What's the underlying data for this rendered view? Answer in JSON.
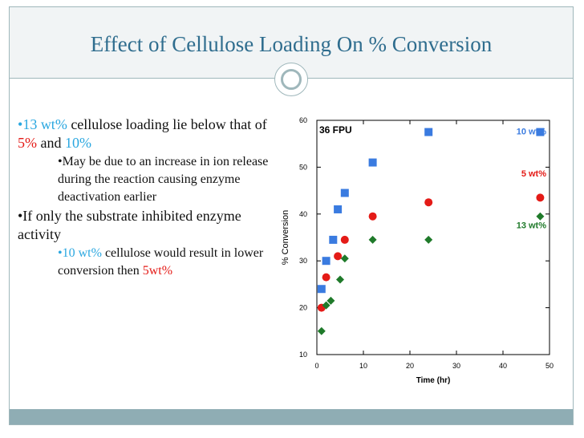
{
  "slide": {
    "title": "Effect of Cellulose Loading On % Conversion"
  },
  "bullets": {
    "b1_bullet": "•",
    "b1_wt": "13 wt%",
    "b1_text1": " cellulose loading lie below that of ",
    "b1_5": "5%",
    "b1_and": " and ",
    "b1_10": "10%",
    "s1": "•May be due to an increase in ion release during the reaction causing enzyme deactivation earlier",
    "b2": "•If only the substrate inhibited enzyme  activity",
    "s2_bullet": "•",
    "s2_10": "10 wt%",
    "s2_text": " cellulose would result in lower conversion then ",
    "s2_5": "5wt%"
  },
  "colors": {
    "title": "#2f6d8e",
    "blue": "#2aa7e0",
    "red": "#e41b17",
    "series_10": "#3a7be0",
    "series_5": "#e41b17",
    "series_13": "#1f7a2a",
    "footer": "#8fadb4"
  },
  "chart_data": {
    "type": "scatter",
    "title": "",
    "annotation": "36 FPU",
    "xlabel": "Time (hr)",
    "ylabel": "% Conversion",
    "xlim": [
      0,
      50
    ],
    "ylim": [
      10,
      60
    ],
    "xticks": [
      0,
      10,
      20,
      30,
      40,
      50
    ],
    "yticks": [
      10,
      20,
      30,
      40,
      50,
      60
    ],
    "legend_placement": "right (inline labels)",
    "series": [
      {
        "name": "10 wt%",
        "marker": "square",
        "color": "#3a7be0",
        "x": [
          1,
          2,
          3.5,
          4.5,
          6,
          12,
          24,
          48
        ],
        "y": [
          24,
          30,
          34.5,
          41,
          44.5,
          51,
          57.5,
          57.5
        ]
      },
      {
        "name": "5 wt%",
        "marker": "circle",
        "color": "#e41b17",
        "x": [
          1,
          2,
          4.5,
          6,
          12,
          24,
          48
        ],
        "y": [
          20,
          26.5,
          31,
          34.5,
          39.5,
          42.5,
          43.5
        ]
      },
      {
        "name": "13 wt%",
        "marker": "diamond",
        "color": "#1f7a2a",
        "x": [
          1,
          2,
          3,
          5,
          6,
          12,
          24,
          48
        ],
        "y": [
          15,
          20.5,
          21.5,
          26,
          30.5,
          34.5,
          34.5,
          39.5
        ]
      }
    ]
  }
}
